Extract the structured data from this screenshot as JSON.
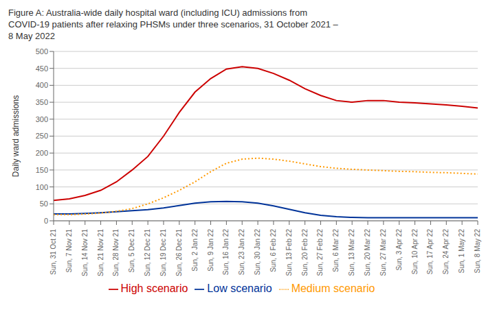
{
  "chart_data": {
    "type": "line",
    "title": "Figure A: Australia-wide daily hospital ward (including ICU) admissions from\nCOVID-19 patients after relaxing PHSMs under three scenarios, 31 October 2021 –\n8 May 2022",
    "y_label": "Daily ward admissions",
    "categories": [
      "Sun, 31 Oct 21",
      "Sun, 7 Nov 21",
      "Sun, 14 Nov 21",
      "Sun, 21 Nov 21",
      "Sun, 28 Nov 21",
      "Sun, 5 Dec 21",
      "Sun, 12 Dec 21",
      "Sun, 19 Dec 21",
      "Sun, 26 Dec 21",
      "Sun, 2 Jan 22",
      "Sun, 9 Jan 22",
      "Sun, 16 Jan 22",
      "Sun, 23 Jan 22",
      "Sun, 30 Jan 22",
      "Sun, 6 Feb 22",
      "Sun, 13 Feb 22",
      "Sun, 20 Feb 22",
      "Sun, 27 Feb 22",
      "Sun, 6 Mar 22",
      "Sun, 13 Mar 22",
      "Sun, 20 Mar 22",
      "Sun, 27 Mar 22",
      "Sun, 3 Apr 22",
      "Sun, 10 Apr 22",
      "Sun, 17 Apr 22",
      "Sun, 24 Apr 22",
      "Sun, 1 May 22",
      "Sun, 8 May 22"
    ],
    "series": [
      {
        "name": "Low scenario",
        "color": "#003399",
        "line_style": "solid",
        "values": [
          20,
          20,
          22,
          24,
          27,
          30,
          33,
          38,
          45,
          52,
          56,
          57,
          56,
          52,
          44,
          34,
          24,
          16,
          12,
          10,
          9,
          9,
          9,
          9,
          9,
          9,
          9,
          9
        ]
      },
      {
        "name": "Medium scenario",
        "color": "#ff9900",
        "line_style": "dotted",
        "values": [
          18,
          18,
          20,
          23,
          28,
          36,
          50,
          68,
          90,
          115,
          145,
          170,
          182,
          185,
          182,
          176,
          168,
          160,
          155,
          152,
          150,
          148,
          146,
          145,
          143,
          142,
          140,
          138
        ]
      },
      {
        "name": "High scenario",
        "color": "#cc0000",
        "line_style": "solid",
        "values": [
          60,
          65,
          75,
          90,
          115,
          150,
          190,
          250,
          320,
          380,
          420,
          448,
          455,
          450,
          435,
          415,
          390,
          370,
          355,
          350,
          355,
          355,
          350,
          348,
          345,
          342,
          338,
          333
        ]
      }
    ],
    "ylim": [
      0,
      500
    ],
    "yticks": [
      0,
      50,
      100,
      150,
      200,
      250,
      300,
      350,
      400,
      450,
      500
    ],
    "grid": true,
    "legend": "bottom"
  }
}
